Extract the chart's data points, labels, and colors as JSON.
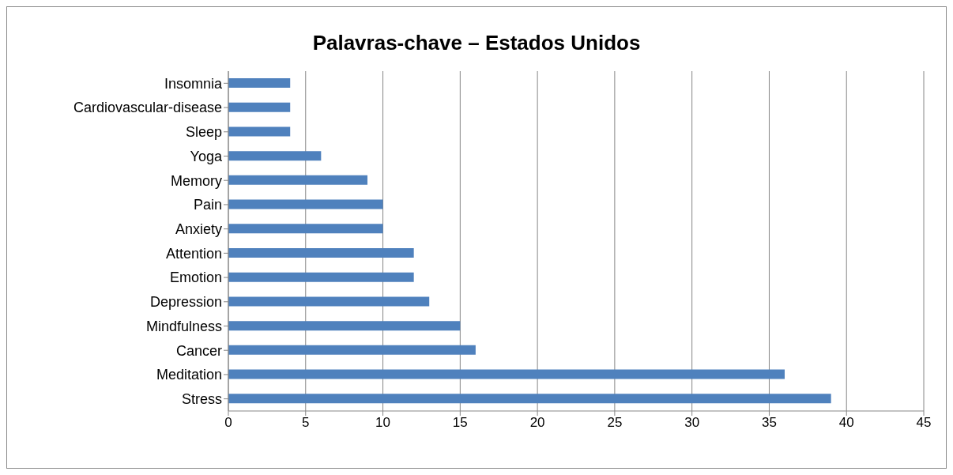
{
  "chart_data": {
    "type": "bar",
    "orientation": "horizontal",
    "title": "Palavras-chave – Estados Unidos",
    "categories": [
      "Insomnia",
      "Cardiovascular-disease",
      "Sleep",
      "Yoga",
      "Memory",
      "Pain",
      "Anxiety",
      "Attention",
      "Emotion",
      "Depression",
      "Mindfulness",
      "Cancer",
      "Meditation",
      "Stress"
    ],
    "values": [
      4,
      4,
      4,
      6,
      9,
      10,
      10,
      12,
      12,
      13,
      15,
      16,
      36,
      39
    ],
    "color": "#4f81bd",
    "xlim": [
      0,
      45
    ],
    "xticks": [
      0,
      5,
      10,
      15,
      20,
      25,
      30,
      35,
      40,
      45
    ],
    "grid": "x"
  }
}
